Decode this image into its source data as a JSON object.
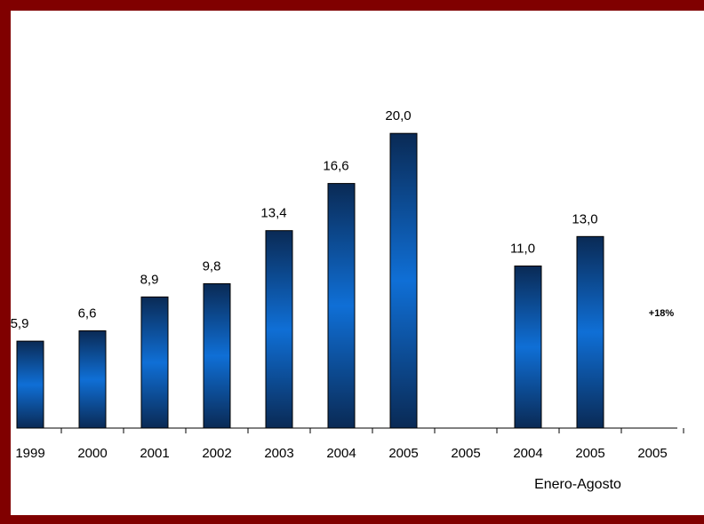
{
  "chart_data": {
    "type": "bar",
    "categories": [
      "1999",
      "2000",
      "2001",
      "2002",
      "2003",
      "2004",
      "2005",
      "2005",
      "2004",
      "2005",
      "2005"
    ],
    "values": [
      5.9,
      6.6,
      8.9,
      9.8,
      13.4,
      16.6,
      20.0,
      null,
      11.0,
      13.0,
      null
    ],
    "value_labels": [
      "5,9",
      "6,6",
      "8,9",
      "9,8",
      "13,4",
      "16,6",
      "20,0",
      "",
      "11,0",
      "13,0",
      ""
    ],
    "ylim": [
      0,
      22
    ],
    "grid": false,
    "legend": "none",
    "group_label": "Enero-Agosto",
    "annotation": "+18%"
  },
  "colors": {
    "frame": "#800000",
    "bar_edge": "#0a2a55",
    "bar_center": "#0f6fd6",
    "axis": "#000000"
  }
}
